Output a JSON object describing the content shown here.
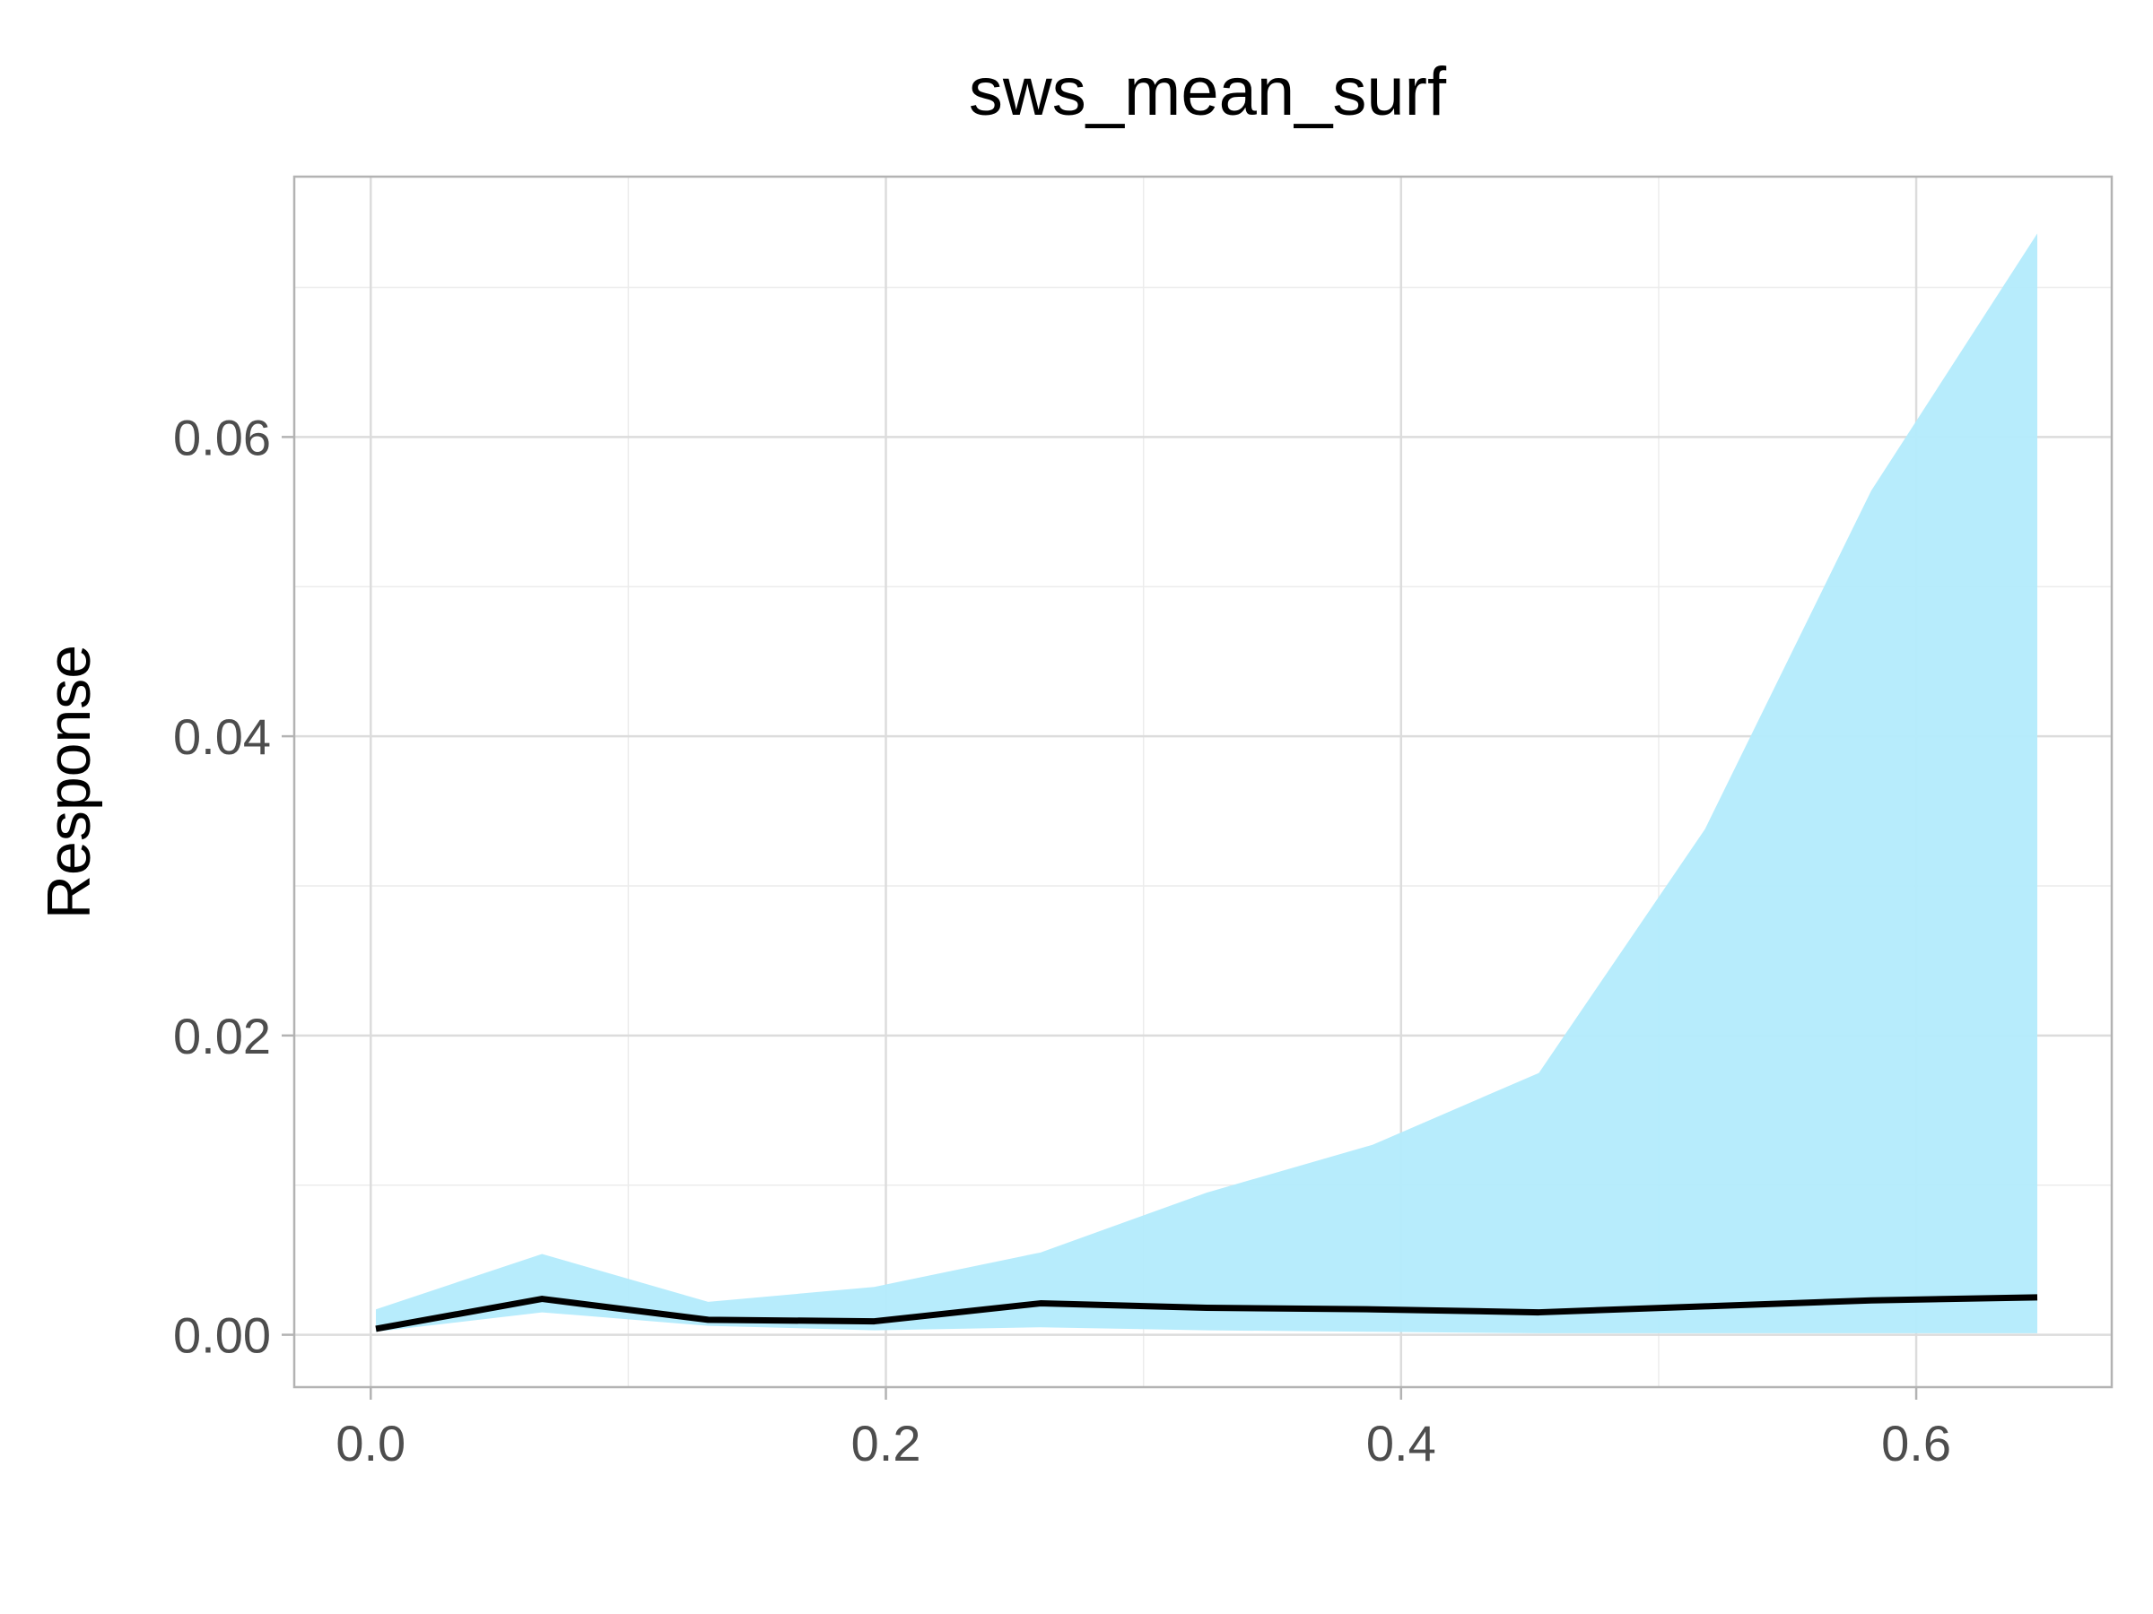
{
  "chart_data": {
    "type": "area",
    "title": "sws_mean_surf",
    "xlabel": "",
    "ylabel": "Response",
    "xlim": [
      -0.0297,
      0.6759
    ],
    "ylim": [
      -0.0035,
      0.0774
    ],
    "x_ticks": [
      0.0,
      0.2,
      0.4,
      0.6
    ],
    "x_tick_labels": [
      "0.0",
      "0.2",
      "0.4",
      "0.6"
    ],
    "y_ticks": [
      0.0,
      0.02,
      0.04,
      0.06
    ],
    "y_tick_labels": [
      "0.00",
      "0.02",
      "0.04",
      "0.06"
    ],
    "grid": true,
    "legend": false,
    "x": [
      0.002,
      0.0665,
      0.131,
      0.1955,
      0.26,
      0.3245,
      0.389,
      0.4535,
      0.518,
      0.5825,
      0.647
    ],
    "series": [
      {
        "role": "band-upper",
        "values": [
          0.0017,
          0.0054,
          0.0022,
          0.0032,
          0.0055,
          0.0095,
          0.0127,
          0.0175,
          0.0338,
          0.0564,
          0.0736
        ]
      },
      {
        "role": "band-lower",
        "values": [
          0.0002,
          0.0015,
          0.0006,
          0.0003,
          0.0005,
          0.0003,
          0.0002,
          0.0001,
          0.0001,
          0.0001,
          0.0001
        ]
      },
      {
        "role": "mean",
        "values": [
          0.0004,
          0.0024,
          0.001,
          0.0009,
          0.0021,
          0.0018,
          0.0017,
          0.0015,
          0.0019,
          0.0023,
          0.0025
        ]
      }
    ],
    "colors": {
      "band": "#b3ebfc",
      "line": "#000000",
      "grid_major": "#dcdcdc",
      "grid_minor": "#ececec",
      "frame": "#b3b3b3",
      "ticks": "#4d4d4d"
    }
  }
}
